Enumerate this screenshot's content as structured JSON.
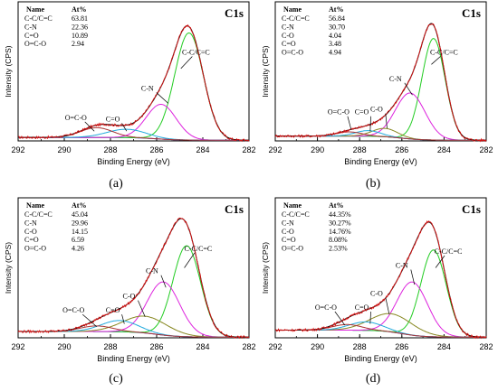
{
  "figure": {
    "captions": [
      "(a)",
      "(b)",
      "(c)",
      "(d)"
    ]
  },
  "chart_data": [
    {
      "type": "line",
      "panel_caption": "(a)",
      "region_label": "C1s",
      "xlabel": "Binding Energy (eV)",
      "ylabel": "Intensity (CPS)",
      "xlim": [
        292,
        282
      ],
      "x_reversed": true,
      "x_ticks": [
        292,
        290,
        288,
        286,
        284,
        282
      ],
      "table": {
        "headers": [
          "Name",
          "At%"
        ],
        "rows": [
          [
            "C-C/C=C",
            "63.81"
          ],
          [
            "C-N",
            "22.36"
          ],
          [
            "C=O",
            "10.89"
          ],
          [
            "O=C-O",
            "2.94"
          ]
        ]
      },
      "peaks": [
        {
          "name": "C-C/C=C",
          "center": 284.6,
          "height": 0.77,
          "width": 0.62,
          "color": "#22cc22"
        },
        {
          "name": "C-N",
          "center": 285.8,
          "height": 0.25,
          "width": 0.65,
          "color": "#dd22dd"
        },
        {
          "name": "C=O",
          "center": 287.3,
          "height": 0.06,
          "width": 0.85,
          "color": "#22aadd"
        },
        {
          "name": "O=C-O",
          "center": 288.6,
          "height": 0.07,
          "width": 0.7,
          "color": "#aa3333"
        }
      ],
      "annotations": [
        {
          "text": "C-C/C=C",
          "x": 284.3,
          "y": 0.62,
          "tx": 284.95,
          "ty": 0.52
        },
        {
          "text": "C-N",
          "x": 286.4,
          "y": 0.36,
          "tx": 285.5,
          "ty": 0.27
        },
        {
          "text": "C=O",
          "x": 287.9,
          "y": 0.14,
          "tx": 287.3,
          "ty": 0.07
        },
        {
          "text": "O=C-O",
          "x": 289.5,
          "y": 0.15,
          "tx": 288.7,
          "ty": 0.07
        }
      ],
      "bg_left": 0.02,
      "bg_right": 0.0
    },
    {
      "type": "line",
      "panel_caption": "(b)",
      "region_label": "C1s",
      "xlabel": "Binding Energy (eV)",
      "ylabel": "Intensity (CPS)",
      "xlim": [
        292,
        282
      ],
      "x_reversed": true,
      "x_ticks": [
        292,
        290,
        288,
        286,
        284,
        282
      ],
      "table": {
        "headers": [
          "Name",
          "At%"
        ],
        "rows": [
          [
            "C-C/C=C",
            "56.84"
          ],
          [
            "C-N",
            "30.70"
          ],
          [
            "C-O",
            "4.04"
          ],
          [
            "C=O",
            "3.48"
          ],
          [
            "O=C-O",
            "4.94"
          ]
        ]
      },
      "peaks": [
        {
          "name": "C-C/C=C",
          "center": 284.5,
          "height": 0.73,
          "width": 0.55,
          "color": "#22cc22"
        },
        {
          "name": "C-N",
          "center": 285.6,
          "height": 0.33,
          "width": 0.7,
          "color": "#dd22dd"
        },
        {
          "name": "C-O",
          "center": 286.8,
          "height": 0.06,
          "width": 0.6,
          "color": "#888822"
        },
        {
          "name": "C=O",
          "center": 287.6,
          "height": 0.04,
          "width": 0.6,
          "color": "#22aadd"
        },
        {
          "name": "O=C-O",
          "center": 288.5,
          "height": 0.03,
          "width": 0.6,
          "color": "#aa3333"
        }
      ],
      "annotations": [
        {
          "text": "C-C/C=C",
          "x": 284.0,
          "y": 0.62,
          "tx": 284.6,
          "ty": 0.55
        },
        {
          "text": "C-N",
          "x": 286.3,
          "y": 0.43,
          "tx": 285.5,
          "ty": 0.33
        },
        {
          "text": "C-O",
          "x": 287.2,
          "y": 0.21,
          "tx": 286.7,
          "ty": 0.09
        },
        {
          "text": "C=O",
          "x": 287.9,
          "y": 0.19,
          "tx": 287.5,
          "ty": 0.07
        },
        {
          "text": "O=C-O",
          "x": 289.0,
          "y": 0.19,
          "tx": 288.4,
          "ty": 0.08
        }
      ],
      "bg_left": 0.03,
      "bg_right": 0.0
    },
    {
      "type": "line",
      "panel_caption": "(c)",
      "region_label": "C1s",
      "xlabel": "Binding Energy (eV)",
      "ylabel": "Intensity (CPS)",
      "xlim": [
        292,
        282
      ],
      "x_reversed": true,
      "x_ticks": [
        292,
        290,
        288,
        286,
        284,
        282
      ],
      "table": {
        "headers": [
          "Name",
          "At%"
        ],
        "rows": [
          [
            "C-C/C=C",
            "45.04"
          ],
          [
            "C-N",
            "29.96"
          ],
          [
            "C-O",
            "14.15"
          ],
          [
            "C=O",
            "6.59"
          ],
          [
            "O=C-O",
            "4.26"
          ]
        ]
      },
      "peaks": [
        {
          "name": "C-C/C=C",
          "center": 284.7,
          "height": 0.65,
          "width": 0.6,
          "color": "#22cc22"
        },
        {
          "name": "C-N",
          "center": 285.7,
          "height": 0.38,
          "width": 0.7,
          "color": "#dd22dd"
        },
        {
          "name": "C-O",
          "center": 286.5,
          "height": 0.12,
          "width": 0.95,
          "color": "#888822"
        },
        {
          "name": "C=O",
          "center": 287.6,
          "height": 0.08,
          "width": 0.8,
          "color": "#22aadd"
        },
        {
          "name": "O=C-O",
          "center": 288.6,
          "height": 0.04,
          "width": 0.7,
          "color": "#aa3333"
        }
      ],
      "annotations": [
        {
          "text": "C-C/C=C",
          "x": 284.2,
          "y": 0.62,
          "tx": 284.8,
          "ty": 0.5
        },
        {
          "text": "C-N",
          "x": 286.2,
          "y": 0.46,
          "tx": 285.6,
          "ty": 0.36
        },
        {
          "text": "C-O",
          "x": 287.2,
          "y": 0.28,
          "tx": 286.5,
          "ty": 0.15
        },
        {
          "text": "C=O",
          "x": 287.9,
          "y": 0.18,
          "tx": 287.4,
          "ty": 0.1
        },
        {
          "text": "O=C-O",
          "x": 289.6,
          "y": 0.18,
          "tx": 288.6,
          "ty": 0.08
        }
      ],
      "bg_left": 0.04,
      "bg_right": 0.0
    },
    {
      "type": "line",
      "panel_caption": "(d)",
      "region_label": "C1s",
      "xlabel": "Binding Energy (eV)",
      "ylabel": "Intensity (CPS)",
      "xlim": [
        292,
        282
      ],
      "x_reversed": true,
      "x_ticks": [
        292,
        290,
        288,
        286,
        284,
        282
      ],
      "table": {
        "headers": [
          "Name",
          "At%"
        ],
        "rows": [
          [
            "C-C/C=C",
            "44.35%"
          ],
          [
            "C-N",
            "30.27%"
          ],
          [
            "C-O",
            "14.76%"
          ],
          [
            "C=O",
            "8.08%"
          ],
          [
            "O=C-O",
            "2.53%"
          ]
        ]
      },
      "peaks": [
        {
          "name": "C-C/C=C",
          "center": 284.5,
          "height": 0.62,
          "width": 0.6,
          "color": "#22cc22"
        },
        {
          "name": "C-N",
          "center": 285.5,
          "height": 0.38,
          "width": 0.72,
          "color": "#dd22dd"
        },
        {
          "name": "C-O",
          "center": 286.5,
          "height": 0.13,
          "width": 1.0,
          "color": "#888822"
        },
        {
          "name": "C=O",
          "center": 287.7,
          "height": 0.06,
          "width": 0.8,
          "color": "#22aadd"
        },
        {
          "name": "O=C-O",
          "center": 288.6,
          "height": 0.04,
          "width": 0.7,
          "color": "#aa3333"
        }
      ],
      "annotations": [
        {
          "text": "C-C/C=C",
          "x": 283.8,
          "y": 0.6,
          "tx": 284.4,
          "ty": 0.5
        },
        {
          "text": "C-N",
          "x": 286.0,
          "y": 0.5,
          "tx": 285.4,
          "ty": 0.38
        },
        {
          "text": "C-O",
          "x": 287.2,
          "y": 0.3,
          "tx": 286.6,
          "ty": 0.17
        },
        {
          "text": "C=O",
          "x": 287.9,
          "y": 0.2,
          "tx": 287.5,
          "ty": 0.1
        },
        {
          "text": "O=C-O",
          "x": 289.6,
          "y": 0.2,
          "tx": 288.7,
          "ty": 0.09
        }
      ],
      "bg_left": 0.05,
      "bg_right": 0.0
    }
  ]
}
